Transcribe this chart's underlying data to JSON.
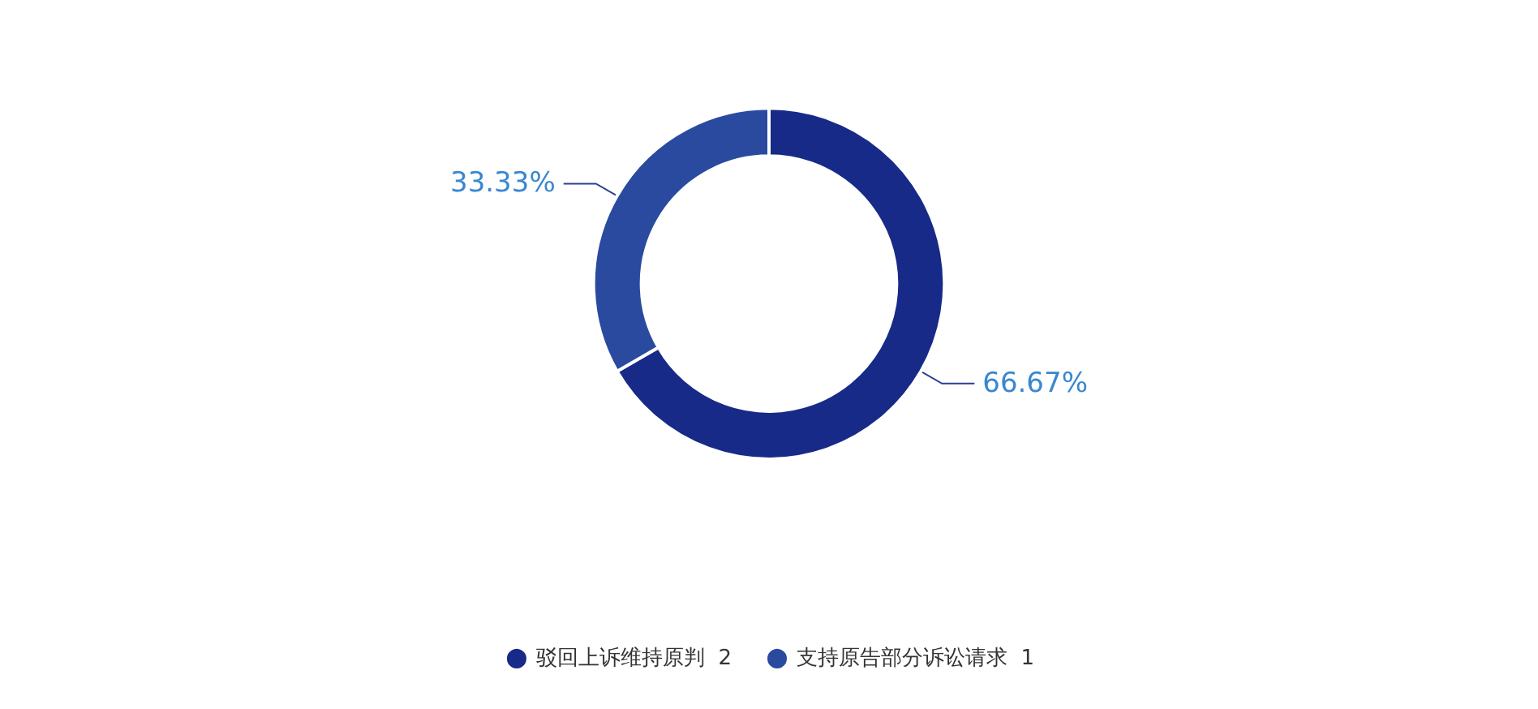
{
  "chart_data": {
    "type": "donut",
    "categories": [
      "驳回上诉维持原判  2",
      "支持原告部分诉讼请求  1"
    ],
    "values": [
      66.67,
      33.33
    ],
    "colors": [
      "#172a88",
      "#2a4aa0"
    ],
    "value_labels": [
      "66.67%",
      "33.33%"
    ],
    "legend": "bottom"
  }
}
